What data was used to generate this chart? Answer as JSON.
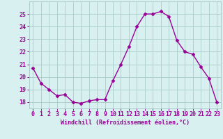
{
  "x": [
    0,
    1,
    2,
    3,
    4,
    5,
    6,
    7,
    8,
    9,
    10,
    11,
    12,
    13,
    14,
    15,
    16,
    17,
    18,
    19,
    20,
    21,
    22,
    23
  ],
  "y": [
    20.7,
    19.5,
    19.0,
    18.5,
    18.6,
    18.0,
    17.9,
    18.1,
    18.2,
    18.2,
    19.7,
    21.0,
    22.4,
    24.0,
    25.0,
    25.0,
    25.2,
    24.8,
    22.9,
    22.0,
    21.8,
    20.8,
    19.9,
    18.0
  ],
  "line_color": "#990099",
  "marker": "D",
  "markersize": 2.5,
  "linewidth": 1.0,
  "bg_color": "#d8f0f0",
  "grid_color": "#aacccc",
  "xlabel": "Windchill (Refroidissement éolien,°C)",
  "xlabel_fontsize": 6.0,
  "tick_fontsize": 6.0,
  "ylim": [
    17.5,
    26.0
  ],
  "xlim": [
    -0.5,
    23.5
  ],
  "yticks": [
    18,
    19,
    20,
    21,
    22,
    23,
    24,
    25
  ],
  "xticks": [
    0,
    1,
    2,
    3,
    4,
    5,
    6,
    7,
    8,
    9,
    10,
    11,
    12,
    13,
    14,
    15,
    16,
    17,
    18,
    19,
    20,
    21,
    22,
    23
  ]
}
